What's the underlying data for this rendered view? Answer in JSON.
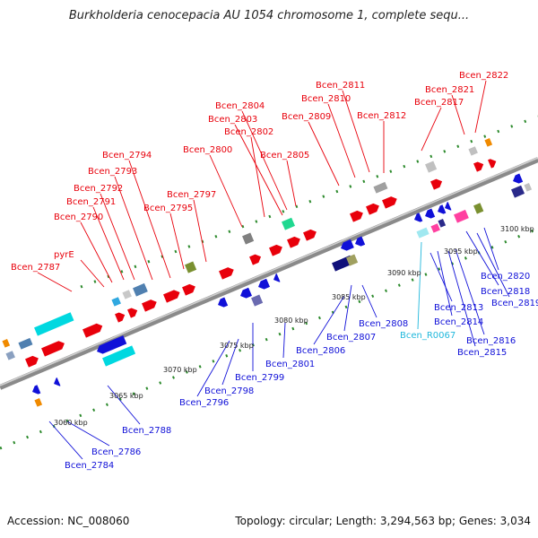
{
  "title": "Burkholderia cenocepacia AU 1054 chromosome 1, complete sequ...",
  "accession": "Accession: NC_008060",
  "topology": "Topology: circular; Length: 3,294,563 bp; Genes: 3,034",
  "colors": {
    "forward": "#e8000b",
    "reverse": "#1010d8",
    "rna": "#21b8dc"
  },
  "scale_labels": [
    "3060 kbp",
    "3065 kbp",
    "3070 kbp",
    "3075 kbp",
    "3080 kbp",
    "3085 kbp",
    "3090 kbp",
    "3095 kbp",
    "3100 kbp"
  ],
  "upper_genes": [
    "Bcen_2787",
    "pyrE",
    "Bcen_2790",
    "Bcen_2791",
    "Bcen_2792",
    "Bcen_2793",
    "Bcen_2794",
    "Bcen_2795",
    "Bcen_2797",
    "Bcen_2800",
    "Bcen_2802",
    "Bcen_2803",
    "Bcen_2804",
    "Bcen_2805",
    "Bcen_2809",
    "Bcen_2810",
    "Bcen_2811",
    "Bcen_2812",
    "Bcen_2817",
    "Bcen_2821",
    "Bcen_2822"
  ],
  "lower_genes": [
    "Bcen_2784",
    "Bcen_2786",
    "Bcen_2788",
    "Bcen_2796",
    "Bcen_2798",
    "Bcen_2799",
    "Bcen_2801",
    "Bcen_2806",
    "Bcen_2807",
    "Bcen_2808",
    "Bcen_R0067",
    "Bcen_2813",
    "Bcen_2814",
    "Bcen_2815",
    "Bcen_2816",
    "Bcen_2818",
    "Bcen_2819",
    "Bcen_2820"
  ]
}
